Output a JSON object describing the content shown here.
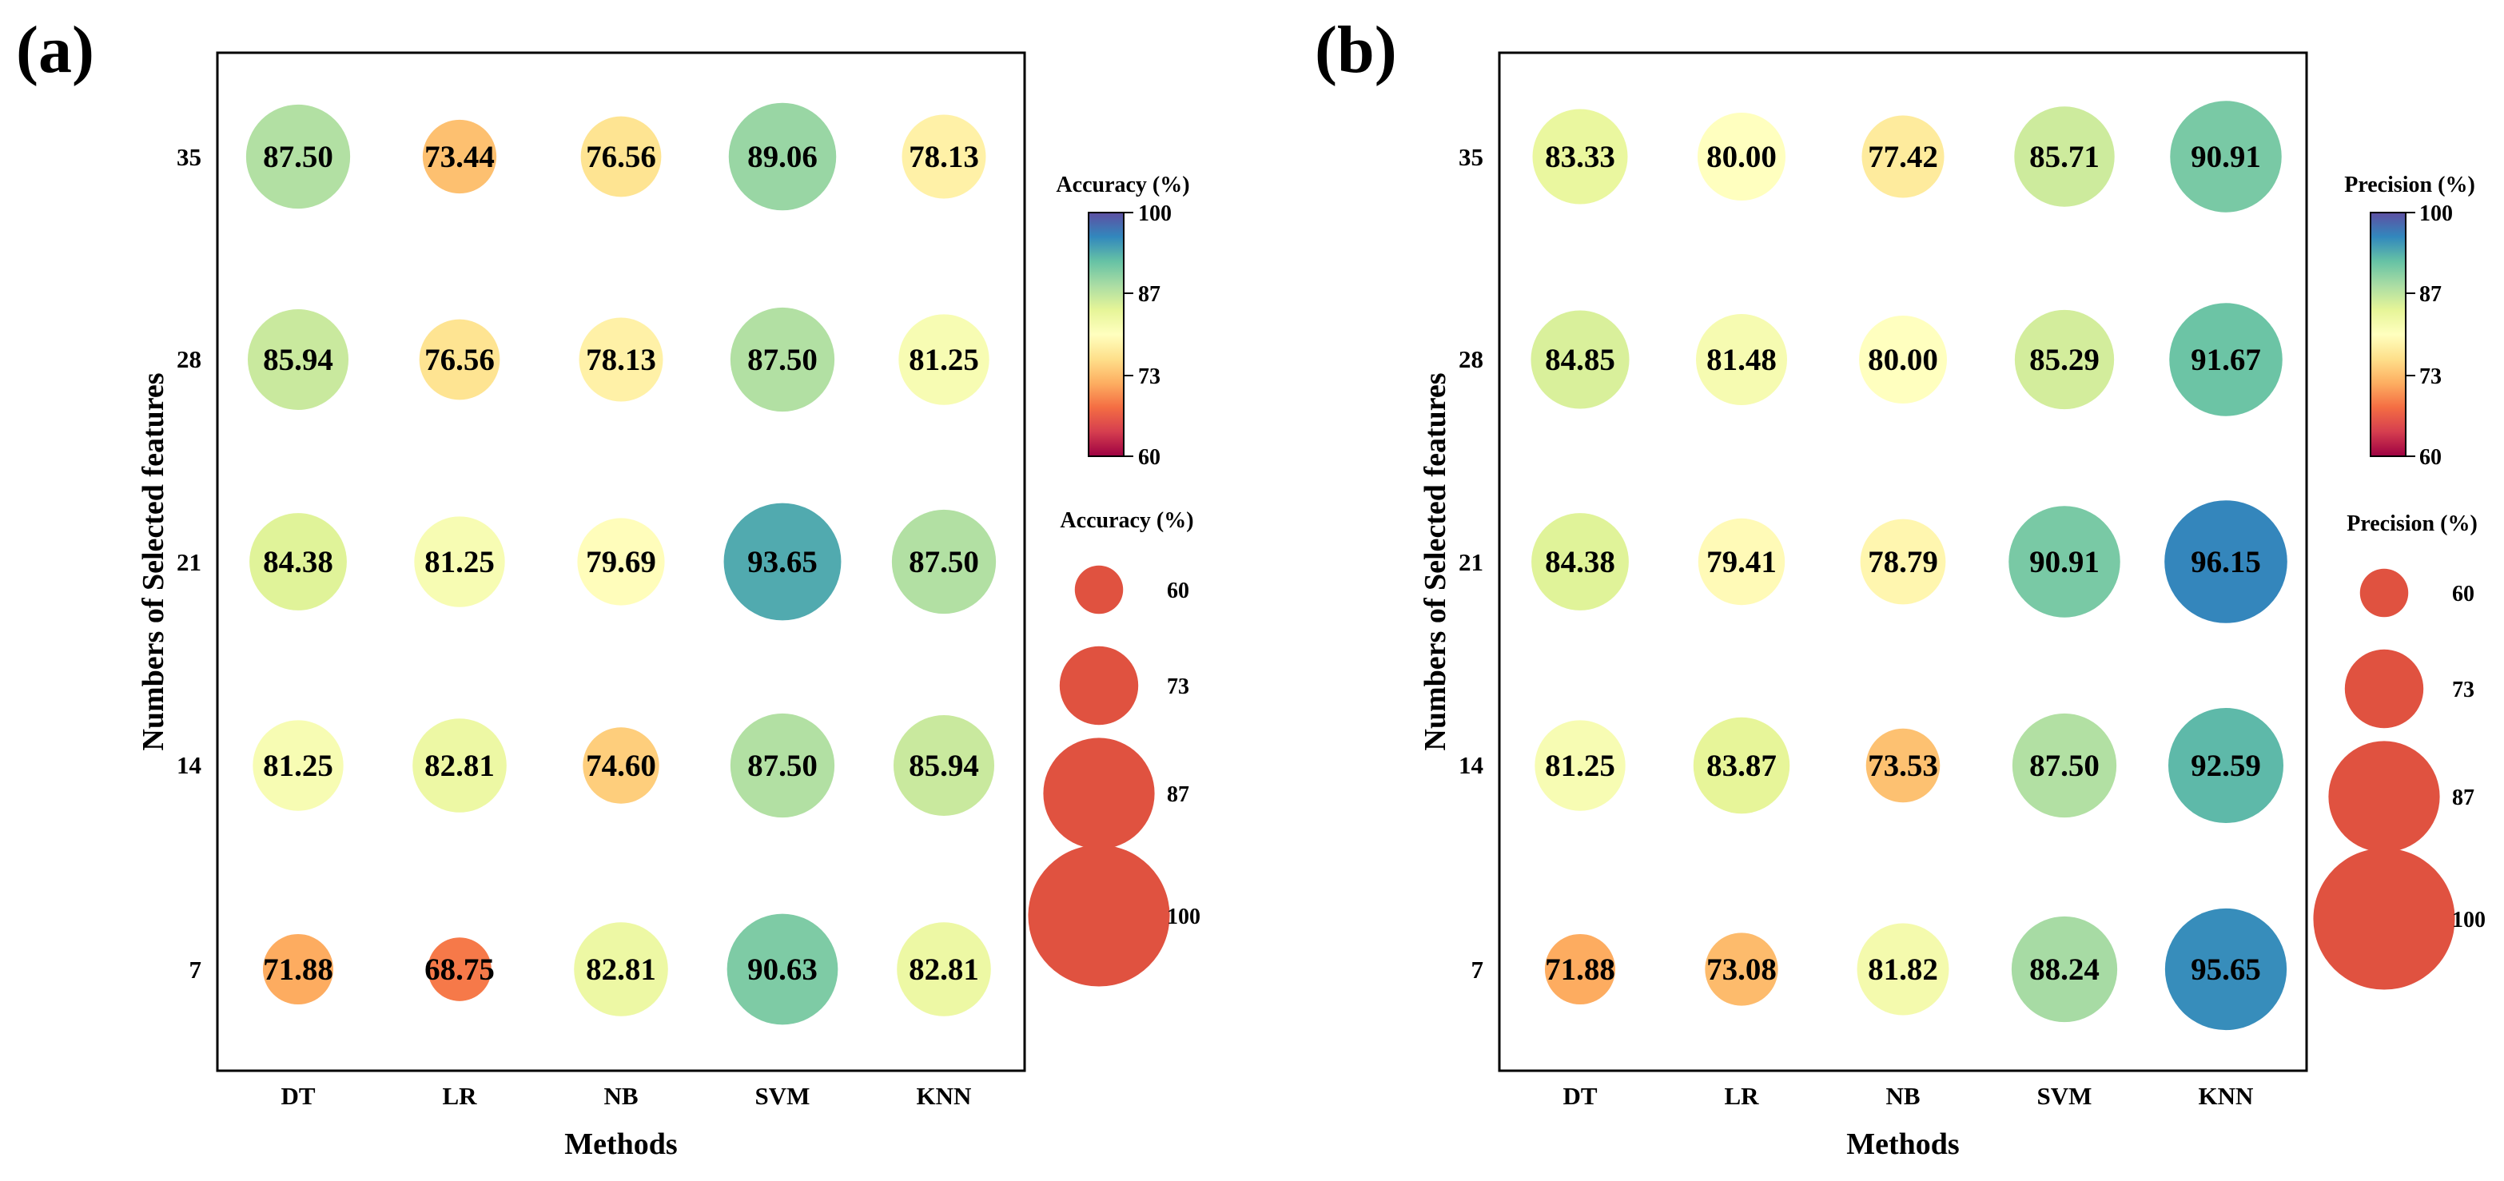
{
  "chart_data": [
    {
      "type": "bubble-heatmap",
      "panel_label": "(a)",
      "xlabel": "Methods",
      "ylabel": "Numbers of Selected features",
      "categories": [
        "DT",
        "LR",
        "NB",
        "SVM",
        "KNN"
      ],
      "y_categories": [
        "35",
        "28",
        "21",
        "14",
        "7"
      ],
      "values": [
        [
          87.5,
          73.44,
          76.56,
          89.06,
          78.13
        ],
        [
          85.94,
          76.56,
          78.13,
          87.5,
          81.25
        ],
        [
          84.38,
          81.25,
          79.69,
          93.65,
          87.5
        ],
        [
          81.25,
          82.81,
          74.6,
          87.5,
          85.94
        ],
        [
          71.88,
          68.75,
          82.81,
          90.63,
          82.81
        ]
      ],
      "labels": [
        [
          "87.50",
          "73.44",
          "76.56",
          "89.06",
          "78.13"
        ],
        [
          "85.94",
          "76.56",
          "78.13",
          "87.50",
          "81.25"
        ],
        [
          "84.38",
          "81.25",
          "79.69",
          "93.65",
          "87.50"
        ],
        [
          "81.25",
          "82.81",
          "74.60",
          "87.50",
          "85.94"
        ],
        [
          "71.88",
          "68.75",
          "82.81",
          "90.63",
          "82.81"
        ]
      ],
      "colorbar": {
        "title": "Accuracy (%)",
        "range": [
          60,
          100
        ],
        "ticks": [
          "100",
          "87",
          "73",
          "60"
        ]
      },
      "size_legend": {
        "title": "Accuracy (%)",
        "entries": [
          "60",
          "73",
          "87",
          "100"
        ],
        "values": [
          60,
          73,
          87,
          100
        ],
        "color": "#e05240"
      }
    },
    {
      "type": "bubble-heatmap",
      "panel_label": "(b)",
      "xlabel": "Methods",
      "ylabel": "Numbers of Selected features",
      "categories": [
        "DT",
        "LR",
        "NB",
        "SVM",
        "KNN"
      ],
      "y_categories": [
        "35",
        "28",
        "21",
        "14",
        "7"
      ],
      "values": [
        [
          83.33,
          80.0,
          77.42,
          85.71,
          90.91
        ],
        [
          84.85,
          81.48,
          80.0,
          85.29,
          91.67
        ],
        [
          84.38,
          79.41,
          78.79,
          90.91,
          96.15
        ],
        [
          81.25,
          83.87,
          73.53,
          87.5,
          92.59
        ],
        [
          71.88,
          73.08,
          81.82,
          88.24,
          95.65
        ]
      ],
      "labels": [
        [
          "83.33",
          "80.00",
          "77.42",
          "85.71",
          "90.91"
        ],
        [
          "84.85",
          "81.48",
          "80.00",
          "85.29",
          "91.67"
        ],
        [
          "84.38",
          "79.41",
          "78.79",
          "90.91",
          "96.15"
        ],
        [
          "81.25",
          "83.87",
          "73.53",
          "87.50",
          "92.59"
        ],
        [
          "71.88",
          "73.08",
          "81.82",
          "88.24",
          "95.65"
        ]
      ],
      "colorbar": {
        "title": "Precision (%)",
        "range": [
          60,
          100
        ],
        "ticks": [
          "100",
          "87",
          "73",
          "60"
        ]
      },
      "size_legend": {
        "title": "Precision (%)",
        "entries": [
          "60",
          "73",
          "87",
          "100"
        ],
        "values": [
          60,
          73,
          87,
          100
        ],
        "color": "#e05240"
      }
    }
  ],
  "colormap": {
    "name": "Spectral",
    "stops": [
      "#9e0142",
      "#d53e4f",
      "#f46d43",
      "#fdae61",
      "#fee08b",
      "#ffffbf",
      "#e6f598",
      "#abdda4",
      "#66c2a5",
      "#3288bd",
      "#5e4fa2"
    ]
  }
}
